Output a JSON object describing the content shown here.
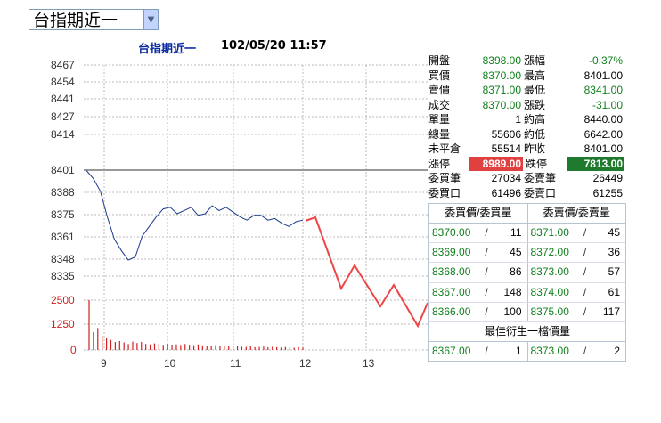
{
  "selector": {
    "value": "台指期近一"
  },
  "chart_header": {
    "title": "台指期近一",
    "datetime": "102/05/20 11:57"
  },
  "chart_data": {
    "type": "line",
    "title": "台指期近一",
    "price_ticks": [
      "8467",
      "8454",
      "8441",
      "8427",
      "8414",
      "8401",
      "8388",
      "8375",
      "8361",
      "8348",
      "8335"
    ],
    "volume_ticks": [
      "2500",
      "1250",
      "0"
    ],
    "x_ticks": [
      "9",
      "10",
      "11",
      "12",
      "13"
    ],
    "ylim": [
      8335,
      8467
    ],
    "reference_price": 8401,
    "grid": true,
    "series": [
      {
        "values": [
          8401,
          8396,
          8388,
          8372,
          8358,
          8351,
          8345,
          8347,
          8360,
          8366,
          8372,
          8377,
          8378,
          8374,
          8376,
          8378,
          8373,
          8374,
          8379,
          8376,
          8378,
          8375,
          8372,
          8370,
          8373,
          8373,
          8370,
          8371,
          8368,
          8366,
          8369,
          8370
        ]
      }
    ],
    "volume": [
      2500,
      900,
      1100,
      700,
      600,
      500,
      400,
      450,
      380,
      300,
      420,
      350,
      400,
      300,
      280,
      330,
      300,
      260,
      310,
      270,
      280,
      250,
      300,
      260,
      240,
      280,
      230,
      220,
      200,
      250,
      210,
      180,
      190,
      170,
      200,
      160,
      150,
      180,
      140,
      150,
      170,
      130,
      160,
      140,
      120,
      150,
      130,
      110,
      140,
      120
    ]
  },
  "quote": {
    "rows": [
      {
        "l1": "開盤",
        "v1": "8398.00",
        "l2": "漲幅",
        "v2": "-0.37%"
      },
      {
        "l1": "買價",
        "v1": "8370.00",
        "l2": "最高",
        "v2": "8401.00"
      },
      {
        "l1": "賣價",
        "v1": "8371.00",
        "l2": "最低",
        "v2": "8341.00"
      },
      {
        "l1": "成交",
        "v1": "8370.00",
        "l2": "漲跌",
        "v2": "-31.00"
      },
      {
        "l1": "單量",
        "v1": "1",
        "l2": "約高",
        "v2": "8440.00"
      },
      {
        "l1": "總量",
        "v1": "55606",
        "l2": "約低",
        "v2": "6642.00"
      },
      {
        "l1": "未平倉",
        "v1": "55514",
        "l2": "昨收",
        "v2": "8401.00"
      },
      {
        "l1": "漲停",
        "v1": "8989.00",
        "l2": "跌停",
        "v2": "7813.00"
      },
      {
        "l1": "委買筆",
        "v1": "27034",
        "l2": "委賣筆",
        "v2": "26449"
      },
      {
        "l1": "委買口",
        "v1": "61496",
        "l2": "委賣口",
        "v2": "61255"
      }
    ]
  },
  "book": {
    "bid_header": "委買價/委買量",
    "ask_header": "委賣價/委賣量",
    "rows": [
      {
        "bp": "8370.00",
        "bq": "11",
        "ap": "8371.00",
        "aq": "45"
      },
      {
        "bp": "8369.00",
        "bq": "45",
        "ap": "8372.00",
        "aq": "36"
      },
      {
        "bp": "8368.00",
        "bq": "86",
        "ap": "8373.00",
        "aq": "57"
      },
      {
        "bp": "8367.00",
        "bq": "148",
        "ap": "8374.00",
        "aq": "61"
      },
      {
        "bp": "8366.00",
        "bq": "100",
        "ap": "8375.00",
        "aq": "117"
      }
    ],
    "best_title": "最佳衍生一檔價量",
    "best": {
      "bp": "8367.00",
      "bq": "1",
      "ap": "8373.00",
      "aq": "2"
    },
    "sep": "/"
  },
  "colors": {
    "price_line": "#1a3a8a",
    "volume": "#d02020",
    "annot": "#ee4444",
    "limit_up": "#e04040",
    "limit_down": "#1f7a2e"
  }
}
